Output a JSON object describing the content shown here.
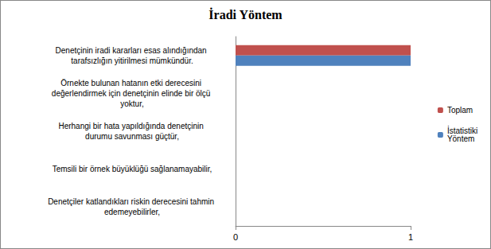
{
  "chart_data": {
    "type": "bar",
    "title": "İradi Yöntem",
    "orientation": "horizontal",
    "categories": [
      "Denetçinin iradi kararları esas alındığından tarafsızlığın yitirilmesi mümkündür.",
      "Örnekte bulunan hatanın etki derecesini değerlendirmek için denetçinin elinde bir ölçü yoktur,",
      "Herhangi bir hata yapıldığında denetçinin durumu savunması güçtür,",
      "Temsili bir örnek büyüklüğü sağlanamayabilir,",
      "Denetçiler katlandıkları riskin derecesini tahmin edemeyebilirler,"
    ],
    "series": [
      {
        "name": "Toplam",
        "color": "#c0504d",
        "values": [
          1,
          0,
          0,
          0,
          0
        ]
      },
      {
        "name": "İstatistiki Yöntem",
        "color": "#4f81bd",
        "values": [
          1,
          0,
          0,
          0,
          0
        ]
      }
    ],
    "xlim": [
      0,
      1
    ],
    "xticks": [
      0,
      1
    ],
    "grid": false,
    "legend": "right"
  }
}
